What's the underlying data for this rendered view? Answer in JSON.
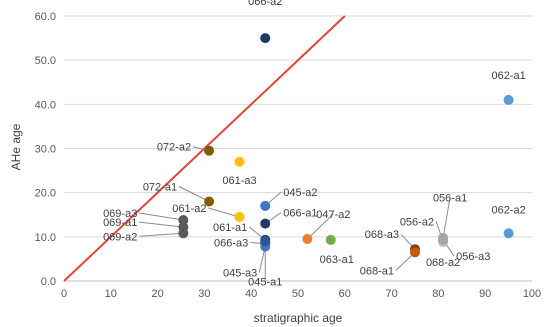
{
  "chart_data": {
    "type": "scatter",
    "title": "",
    "xlabel": "stratigraphic age",
    "ylabel": "AHe age",
    "xlim": [
      0,
      100
    ],
    "ylim": [
      0,
      60
    ],
    "x_ticks": [
      "0",
      "10",
      "20",
      "30",
      "40",
      "50",
      "60",
      "70",
      "80",
      "90",
      "100"
    ],
    "y_ticks": [
      "0.0",
      "10.0",
      "20.0",
      "30.0",
      "40.0",
      "50.0",
      "60.0"
    ],
    "grid": "horizontal",
    "reference_line": {
      "x": [
        0,
        60
      ],
      "y": [
        0,
        60
      ],
      "color": "#e0443c"
    },
    "points": [
      {
        "label": "066-a2",
        "x": 43,
        "y": 55,
        "color": "#1f3864"
      },
      {
        "label": "062-a1",
        "x": 95,
        "y": 41,
        "color": "#5b9bd5"
      },
      {
        "label": "072-a2",
        "x": 31,
        "y": 29.5,
        "color": "#806000"
      },
      {
        "label": "061-a3",
        "x": 37.5,
        "y": 27,
        "color": "#ffc000"
      },
      {
        "label": "072-a1",
        "x": 31,
        "y": 18,
        "color": "#806000"
      },
      {
        "label": "045-a2",
        "x": 43,
        "y": 17,
        "color": "#4472c4"
      },
      {
        "label": "061-a2",
        "x": 37.5,
        "y": 14.5,
        "color": "#ffc000"
      },
      {
        "label": "069-a3",
        "x": 25.5,
        "y": 13.8,
        "color": "#595959"
      },
      {
        "label": "066-a1",
        "x": 43,
        "y": 13,
        "color": "#1f3864"
      },
      {
        "label": "069-a1",
        "x": 25.5,
        "y": 12.2,
        "color": "#595959"
      },
      {
        "label": "069-a2",
        "x": 25.5,
        "y": 10.8,
        "color": "#595959"
      },
      {
        "label": "061-a1",
        "x": 43,
        "y": 9.3,
        "color": "#203864"
      },
      {
        "label": "066-a3",
        "x": 43,
        "y": 8.5,
        "color": "#1f3864"
      },
      {
        "label": "045-a3",
        "x": 43,
        "y": 7.8,
        "color": "#4472c4"
      },
      {
        "label": "045-a1",
        "x": 43,
        "y": 9.0,
        "color": "#2f5597"
      },
      {
        "label": "047-a2",
        "x": 52,
        "y": 9.5,
        "color": "#ed7d31"
      },
      {
        "label": "063-a1",
        "x": 57,
        "y": 9.3,
        "color": "#70ad47"
      },
      {
        "label": "068-a3",
        "x": 75,
        "y": 7.2,
        "color": "#843c0c"
      },
      {
        "label": "068-a1",
        "x": 75,
        "y": 6.5,
        "color": "#c55a11"
      },
      {
        "label": "056-a1",
        "x": 81,
        "y": 9.8,
        "color": "#a6a6a6"
      },
      {
        "label": "056-a2",
        "x": 81,
        "y": 9.0,
        "color": "#a6a6a6"
      },
      {
        "label": "068-a2",
        "x": 81,
        "y": 8.8,
        "color": "#bfbfbf"
      },
      {
        "label": "056-a3",
        "x": 81,
        "y": 9.3,
        "color": "#a6a6a6"
      },
      {
        "label": "062-a2",
        "x": 95,
        "y": 10.8,
        "color": "#5b9bd5"
      }
    ]
  }
}
